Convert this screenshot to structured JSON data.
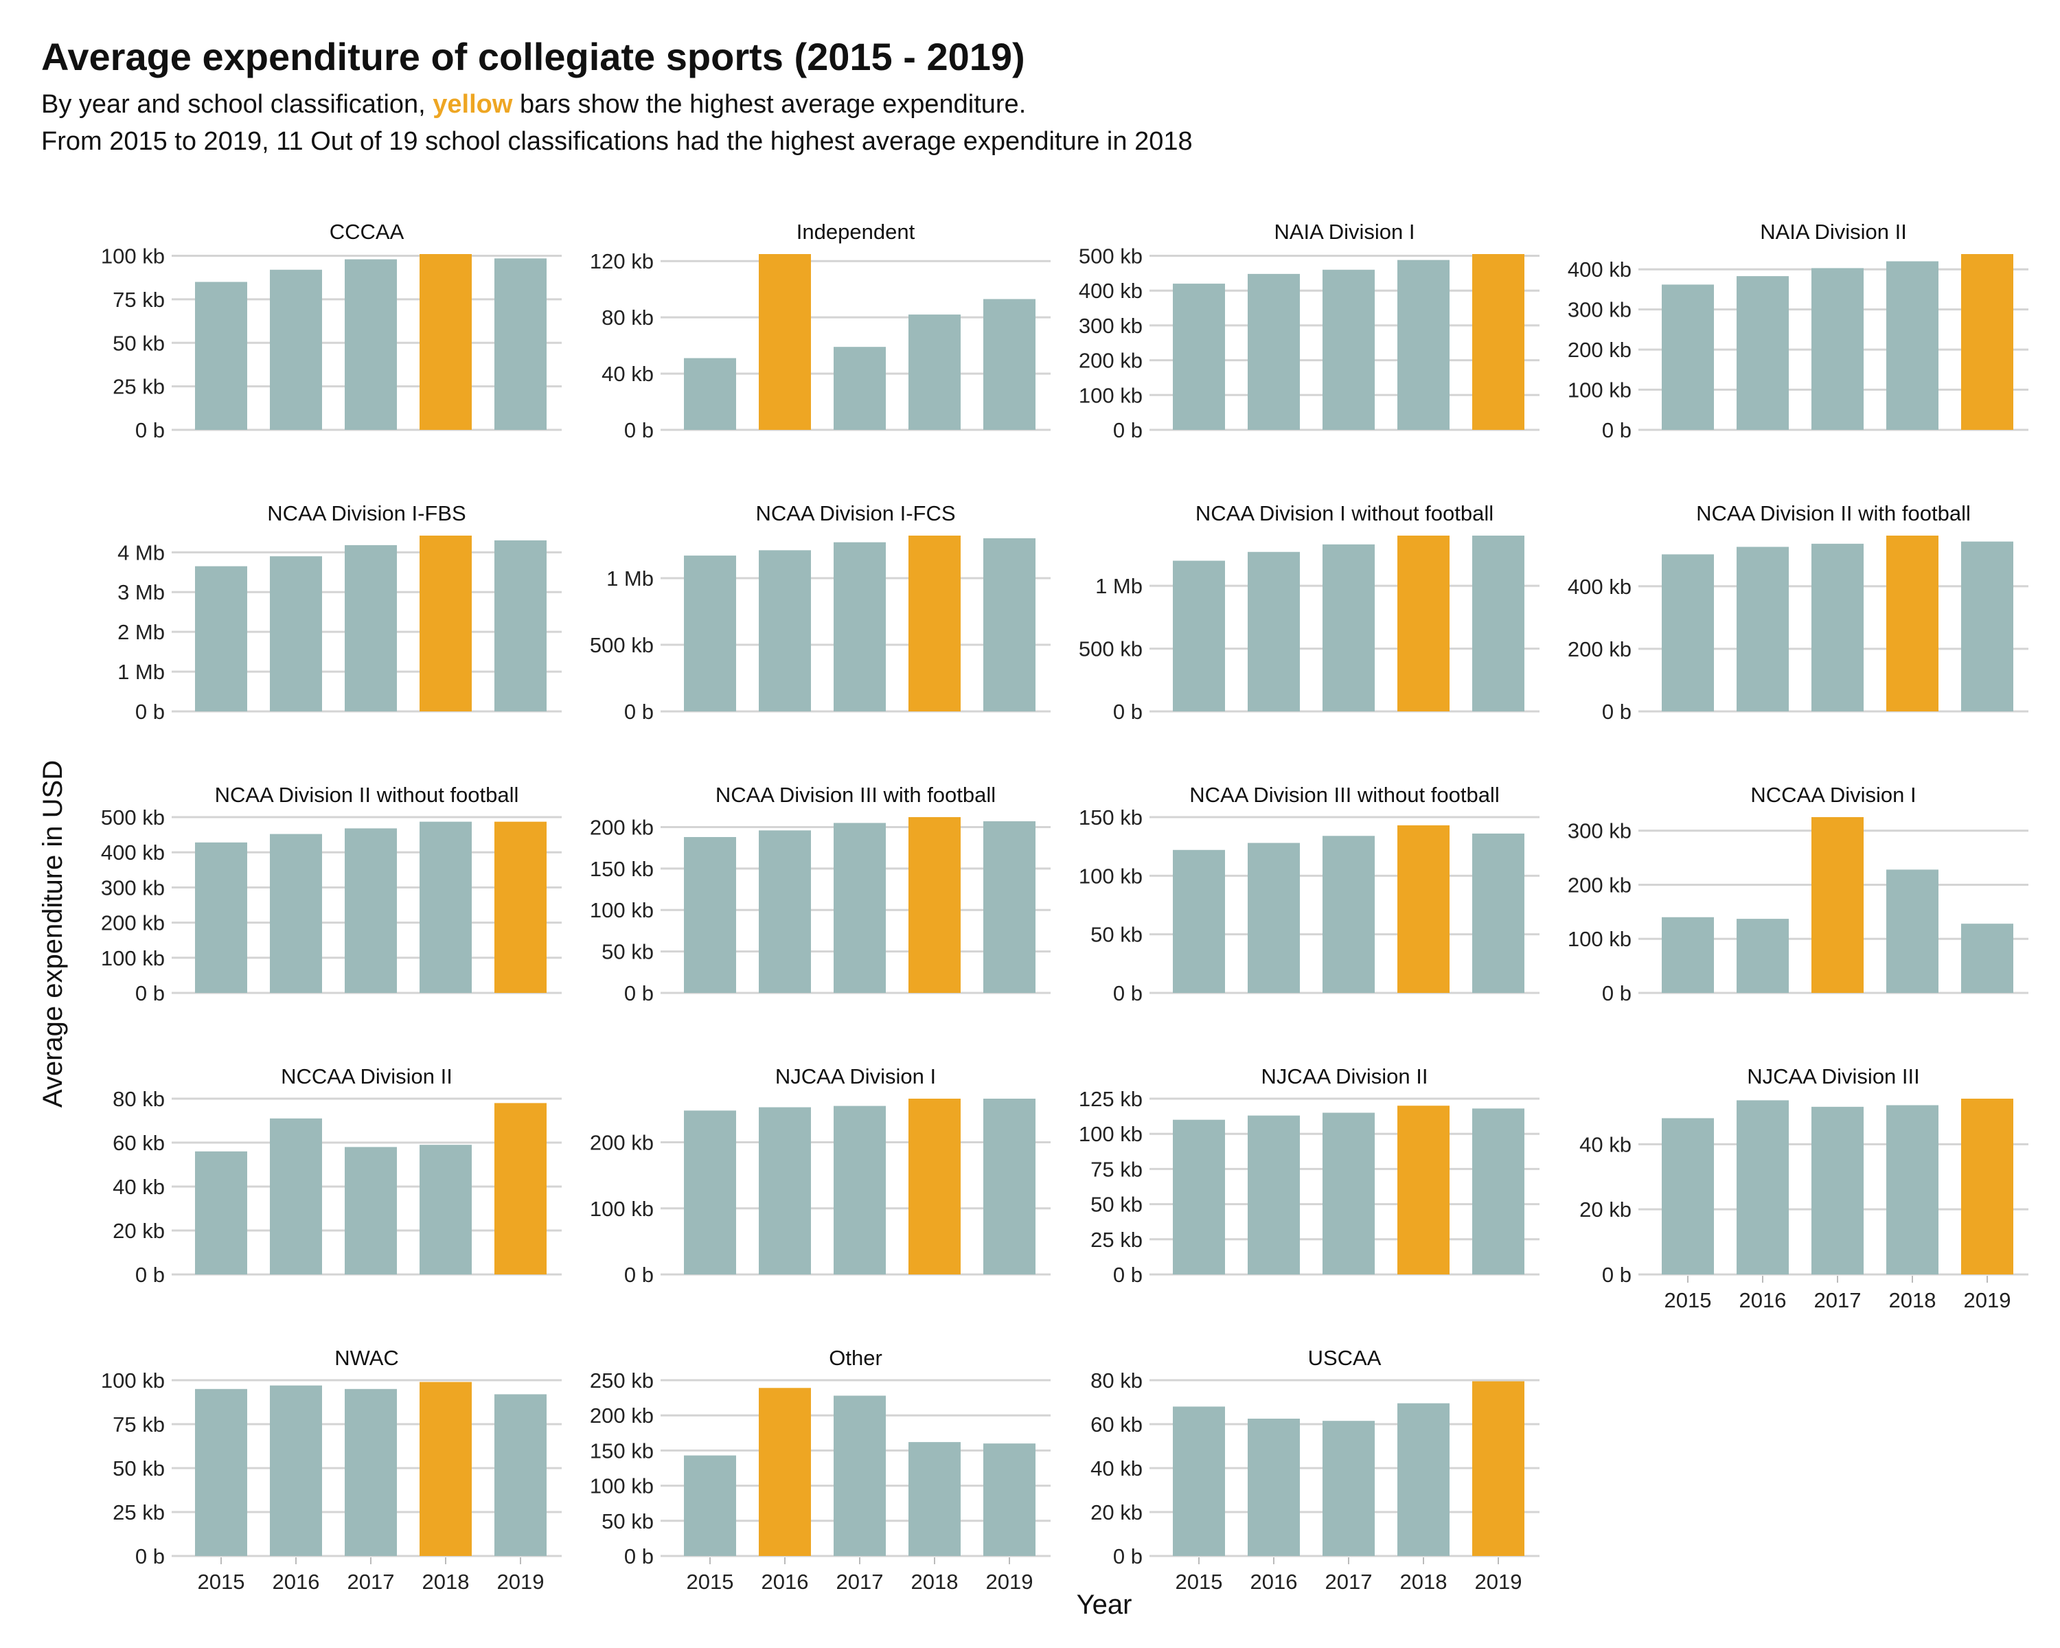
{
  "title": "Average expenditure of collegiate sports (2015 - 2019)",
  "subtitle": {
    "line1_before": "By year and school classification, ",
    "line1_highlight": "yellow",
    "line1_after": " bars show the highest average expenditure.",
    "line2": "From 2015 to 2019, 11 Out of 19 school classifications had the highest average expenditure in 2018"
  },
  "colors": {
    "bar": "#9cbaba",
    "highlight": "#eea623",
    "grid": "#d4d4d4"
  },
  "chart_data": {
    "type": "bar",
    "xlabel": "Year",
    "ylabel": "Average expenditure in USD",
    "categories": [
      "2015",
      "2016",
      "2017",
      "2018",
      "2019"
    ],
    "grid": "horizontal",
    "panels": [
      {
        "name": "CCCAA",
        "values": [
          85000,
          92000,
          98000,
          101000,
          98500
        ],
        "ymax": 101000,
        "ticks": [
          0,
          25000,
          50000,
          75000,
          100000
        ],
        "tick_labels": [
          "0 b",
          "25 kb",
          "50 kb",
          "75 kb",
          "100 kb"
        ],
        "highlight": 3,
        "show_x": false
      },
      {
        "name": "Independent",
        "values": [
          51000,
          125000,
          59000,
          82000,
          93000
        ],
        "ymax": 125000,
        "ticks": [
          0,
          40000,
          80000,
          120000
        ],
        "tick_labels": [
          "0 b",
          "40 kb",
          "80 kb",
          "120 kb"
        ],
        "highlight": 1,
        "show_x": false
      },
      {
        "name": "NAIA Division I",
        "values": [
          420000,
          448000,
          460000,
          488000,
          505000
        ],
        "ymax": 505000,
        "ticks": [
          0,
          100000,
          200000,
          300000,
          400000,
          500000
        ],
        "tick_labels": [
          "0 b",
          "100 kb",
          "200 kb",
          "300 kb",
          "400 kb",
          "500 kb"
        ],
        "highlight": 4,
        "show_x": false
      },
      {
        "name": "NAIA Division II",
        "values": [
          362000,
          383000,
          403000,
          420000,
          438000
        ],
        "ymax": 438000,
        "ticks": [
          0,
          100000,
          200000,
          300000,
          400000
        ],
        "tick_labels": [
          "0 b",
          "100 kb",
          "200 kb",
          "300 kb",
          "400 kb"
        ],
        "highlight": 4,
        "show_x": false
      },
      {
        "name": "NCAA Division I-FBS",
        "values": [
          3650000,
          3900000,
          4180000,
          4420000,
          4300000
        ],
        "ymax": 4420000,
        "ticks": [
          0,
          1000000,
          2000000,
          3000000,
          4000000
        ],
        "tick_labels": [
          "0 b",
          "1 Mb",
          "2 Mb",
          "3 Mb",
          "4 Mb"
        ],
        "highlight": 3,
        "show_x": false
      },
      {
        "name": "NCAA Division I-FCS",
        "values": [
          1170000,
          1210000,
          1270000,
          1320000,
          1300000
        ],
        "ymax": 1320000,
        "ticks": [
          0,
          500000,
          1000000
        ],
        "tick_labels": [
          "0 b",
          "500 kb",
          "1 Mb"
        ],
        "highlight": 3,
        "show_x": false
      },
      {
        "name": "NCAA Division I without football",
        "values": [
          1200000,
          1270000,
          1330000,
          1400000,
          1400000
        ],
        "ymax": 1400000,
        "ticks": [
          0,
          500000,
          1000000
        ],
        "tick_labels": [
          "0 b",
          "500 kb",
          "1 Mb"
        ],
        "highlight": 3,
        "show_x": false
      },
      {
        "name": "NCAA Division II with football",
        "values": [
          502000,
          526000,
          536000,
          562000,
          543000
        ],
        "ymax": 562000,
        "ticks": [
          0,
          200000,
          400000
        ],
        "tick_labels": [
          "0 b",
          "200 kb",
          "400 kb"
        ],
        "highlight": 3,
        "show_x": false
      },
      {
        "name": "NCAA Division II without football",
        "values": [
          428000,
          452000,
          468000,
          487000,
          487000
        ],
        "ymax": 500000,
        "ticks": [
          0,
          100000,
          200000,
          300000,
          400000,
          500000
        ],
        "tick_labels": [
          "0 b",
          "100 kb",
          "200 kb",
          "300 kb",
          "400 kb",
          "500 kb"
        ],
        "highlight": 4,
        "show_x": false
      },
      {
        "name": "NCAA Division III with football",
        "values": [
          188000,
          196000,
          205000,
          212000,
          207000
        ],
        "ymax": 212000,
        "ticks": [
          0,
          50000,
          100000,
          150000,
          200000
        ],
        "tick_labels": [
          "0 b",
          "50 kb",
          "100 kb",
          "150 kb",
          "200 kb"
        ],
        "highlight": 3,
        "show_x": false
      },
      {
        "name": "NCAA Division III without football",
        "values": [
          122000,
          128000,
          134000,
          143000,
          136000
        ],
        "ymax": 150000,
        "ticks": [
          0,
          50000,
          100000,
          150000
        ],
        "tick_labels": [
          "0 b",
          "50 kb",
          "100 kb",
          "150 kb"
        ],
        "highlight": 3,
        "show_x": false
      },
      {
        "name": "NCCAA Division I",
        "values": [
          140000,
          137000,
          325000,
          228000,
          128000
        ],
        "ymax": 325000,
        "ticks": [
          0,
          100000,
          200000,
          300000
        ],
        "tick_labels": [
          "0 b",
          "100 kb",
          "200 kb",
          "300 kb"
        ],
        "highlight": 2,
        "show_x": false
      },
      {
        "name": "NCCAA Division II",
        "values": [
          56000,
          71000,
          58000,
          59000,
          78000
        ],
        "ymax": 80000,
        "ticks": [
          0,
          20000,
          40000,
          60000,
          80000
        ],
        "tick_labels": [
          "0 b",
          "20 kb",
          "40 kb",
          "60 kb",
          "80 kb"
        ],
        "highlight": 4,
        "show_x": false
      },
      {
        "name": "NJCAA Division I",
        "values": [
          248000,
          253000,
          255000,
          266000,
          266000
        ],
        "ymax": 266000,
        "ticks": [
          0,
          100000,
          200000
        ],
        "tick_labels": [
          "0 b",
          "100 kb",
          "200 kb"
        ],
        "highlight": 3,
        "show_x": false
      },
      {
        "name": "NJCAA Division II",
        "values": [
          110000,
          113000,
          115000,
          120000,
          118000
        ],
        "ymax": 125000,
        "ticks": [
          0,
          25000,
          50000,
          75000,
          100000,
          125000
        ],
        "tick_labels": [
          "0 b",
          "25 kb",
          "50 kb",
          "75 kb",
          "100 kb",
          "125 kb"
        ],
        "highlight": 3,
        "show_x": false
      },
      {
        "name": "NJCAA Division III",
        "values": [
          48000,
          53500,
          51500,
          52000,
          54000
        ],
        "ymax": 54000,
        "ticks": [
          0,
          20000,
          40000
        ],
        "tick_labels": [
          "0 b",
          "20 kb",
          "40 kb"
        ],
        "highlight": 4,
        "show_x": true
      },
      {
        "name": "NWAC",
        "values": [
          95000,
          97000,
          95000,
          99000,
          92000
        ],
        "ymax": 100000,
        "ticks": [
          0,
          25000,
          50000,
          75000,
          100000
        ],
        "tick_labels": [
          "0 b",
          "25 kb",
          "50 kb",
          "75 kb",
          "100 kb"
        ],
        "highlight": 3,
        "show_x": true
      },
      {
        "name": "Other",
        "values": [
          143000,
          239000,
          228000,
          162000,
          160000
        ],
        "ymax": 250000,
        "ticks": [
          0,
          50000,
          100000,
          150000,
          200000,
          250000
        ],
        "tick_labels": [
          "0 b",
          "50 kb",
          "100 kb",
          "150 kb",
          "200 kb",
          "250 kb"
        ],
        "highlight": 1,
        "show_x": true
      },
      {
        "name": "USCAA",
        "values": [
          68000,
          62500,
          61500,
          69500,
          79500
        ],
        "ymax": 80000,
        "ticks": [
          0,
          20000,
          40000,
          60000,
          80000
        ],
        "tick_labels": [
          "0 b",
          "20 kb",
          "40 kb",
          "60 kb",
          "80 kb"
        ],
        "highlight": 4,
        "show_x": true
      }
    ]
  }
}
